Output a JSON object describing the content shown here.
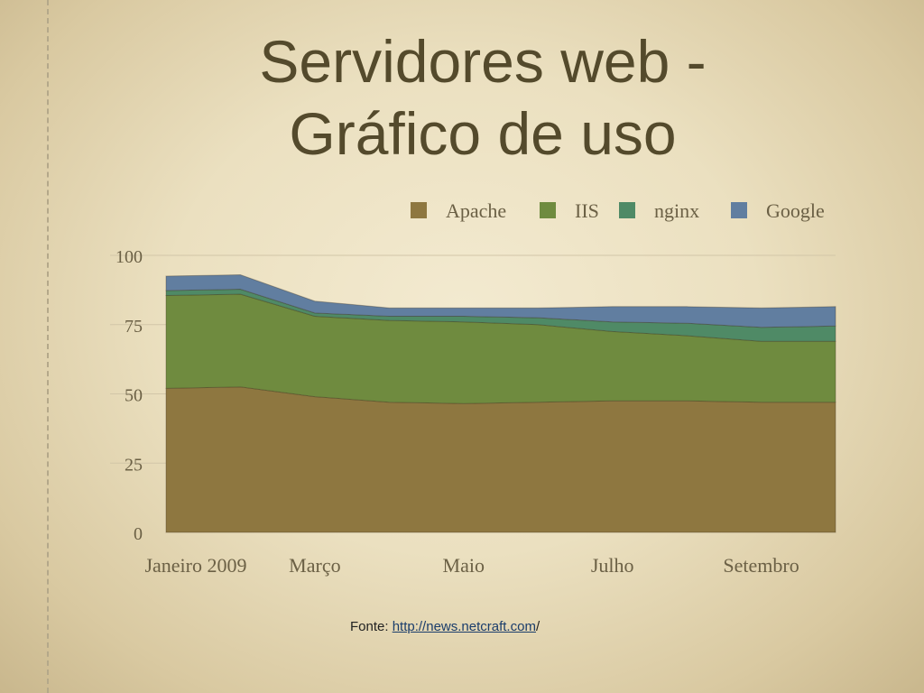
{
  "slide": {
    "title_line1": "Servidores web -",
    "title_line2": "Gráfico de uso",
    "source_label": "Fonte: ",
    "source_link": "http://news.netcraft.com",
    "source_suffix": "/"
  },
  "colors": {
    "Apache": "#8e7740",
    "IIS": "#6f8b3f",
    "nginx": "#4f8a66",
    "Google": "#617ea0"
  },
  "chart_data": {
    "type": "area",
    "stacked": true,
    "x": [
      0,
      1,
      2,
      3,
      4,
      5,
      6,
      7,
      8,
      9
    ],
    "xticks": [
      {
        "label": "Janeiro 2009",
        "x": 0.4
      },
      {
        "label": "Março",
        "x": 2
      },
      {
        "label": "Maio",
        "x": 4
      },
      {
        "label": "Julho",
        "x": 6
      },
      {
        "label": "Setembro",
        "x": 8
      }
    ],
    "xlim": [
      0,
      9
    ],
    "ylim": [
      0,
      100
    ],
    "yticks": [
      0,
      25,
      50,
      75,
      100
    ],
    "grid": "horizontal",
    "legend_position": "top-right",
    "series": [
      {
        "name": "Apache",
        "values": [
          52.0,
          52.5,
          49.0,
          47.0,
          46.5,
          47.0,
          47.5,
          47.5,
          47.0,
          47.0
        ]
      },
      {
        "name": "IIS",
        "values": [
          33.5,
          33.5,
          29.0,
          29.5,
          29.5,
          28.0,
          25.0,
          23.5,
          22.0,
          22.0
        ]
      },
      {
        "name": "nginx",
        "values": [
          1.8,
          1.8,
          1.2,
          1.5,
          2.0,
          2.5,
          3.5,
          4.5,
          5.0,
          5.5
        ]
      },
      {
        "name": "Google",
        "values": [
          5.2,
          5.2,
          4.3,
          3.0,
          3.0,
          3.5,
          5.5,
          6.0,
          7.0,
          7.0
        ]
      }
    ]
  }
}
